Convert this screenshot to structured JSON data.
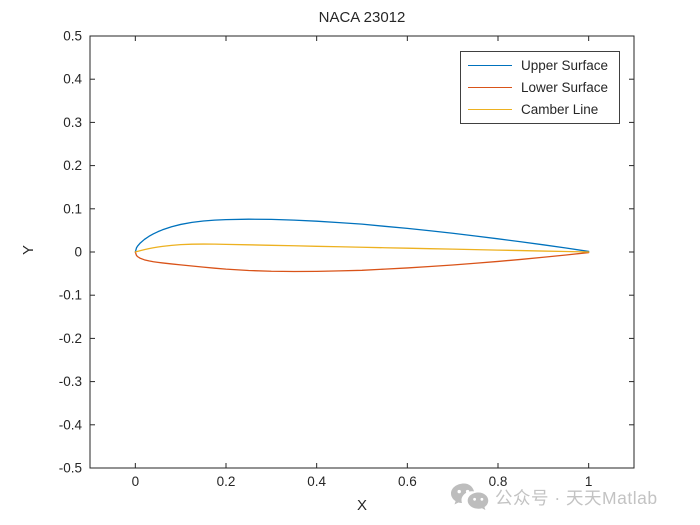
{
  "chart_data": {
    "type": "line",
    "title": "NACA 23012",
    "xlabel": "X",
    "ylabel": "Y",
    "xlim": [
      -0.1,
      1.1
    ],
    "ylim": [
      -0.5,
      0.5
    ],
    "xtick_values": [
      0,
      0.2,
      0.4,
      0.6,
      0.8,
      1
    ],
    "xtick_labels": [
      "0",
      "0.2",
      "0.4",
      "0.6",
      "0.8",
      "1"
    ],
    "ytick_values": [
      0.5,
      0.4,
      0.3,
      0.2,
      0.1,
      0,
      -0.1,
      -0.2,
      -0.3,
      -0.4,
      -0.5
    ],
    "ytick_labels": [
      "0.5",
      "0.4",
      "0.3",
      "0.2",
      "0.1",
      "0",
      "-0.1",
      "-0.2",
      "-0.3",
      "-0.4",
      "-0.5"
    ],
    "grid": false,
    "box": true,
    "tick_direction": "in",
    "legend_position": "top-right",
    "axes_color": "#262626",
    "x": [
      0,
      0.0025,
      0.005,
      0.01,
      0.02,
      0.03,
      0.04,
      0.05,
      0.06,
      0.08,
      0.1,
      0.125,
      0.15,
      0.175,
      0.2,
      0.25,
      0.3,
      0.35,
      0.4,
      0.45,
      0.5,
      0.55,
      0.6,
      0.65,
      0.7,
      0.75,
      0.8,
      0.85,
      0.9,
      0.95,
      1.0
    ],
    "series": [
      {
        "name": "Upper Surface",
        "color": "#0072BD",
        "values": [
          0,
          0.0095,
          0.0137,
          0.0199,
          0.0291,
          0.0362,
          0.0421,
          0.0471,
          0.0514,
          0.0585,
          0.0638,
          0.0686,
          0.0718,
          0.0738,
          0.075,
          0.076,
          0.0755,
          0.0738,
          0.0713,
          0.068,
          0.0645,
          0.0595,
          0.0546,
          0.0491,
          0.0433,
          0.0371,
          0.0305,
          0.0238,
          0.0166,
          0.0092,
          0.0013
        ]
      },
      {
        "name": "Lower Surface",
        "color": "#D95319",
        "values": [
          0,
          -0.008,
          -0.0107,
          -0.0141,
          -0.0181,
          -0.0206,
          -0.0225,
          -0.024,
          -0.0253,
          -0.0276,
          -0.0298,
          -0.0325,
          -0.0351,
          -0.0375,
          -0.0397,
          -0.0428,
          -0.0446,
          -0.0451,
          -0.0448,
          -0.0437,
          -0.0424,
          -0.0396,
          -0.0369,
          -0.0336,
          -0.0301,
          -0.0261,
          -0.0218,
          -0.0172,
          -0.0122,
          -0.007,
          -0.0013
        ]
      },
      {
        "name": "Camber Line",
        "color": "#EDB120",
        "values": [
          0,
          0.0008,
          0.0015,
          0.0029,
          0.0055,
          0.0078,
          0.0098,
          0.0115,
          0.0131,
          0.0154,
          0.017,
          0.0181,
          0.0184,
          0.0182,
          0.0177,
          0.0166,
          0.0155,
          0.0144,
          0.0132,
          0.0121,
          0.011,
          0.0099,
          0.0088,
          0.0077,
          0.0066,
          0.0055,
          0.0044,
          0.0033,
          0.0022,
          0.0011,
          0
        ]
      }
    ]
  },
  "watermark": {
    "icon": "wechat-icon",
    "icon_color": "#bdbdbd",
    "text": "公众号 · 天天Matlab",
    "text_color": "#c3c3c3"
  }
}
